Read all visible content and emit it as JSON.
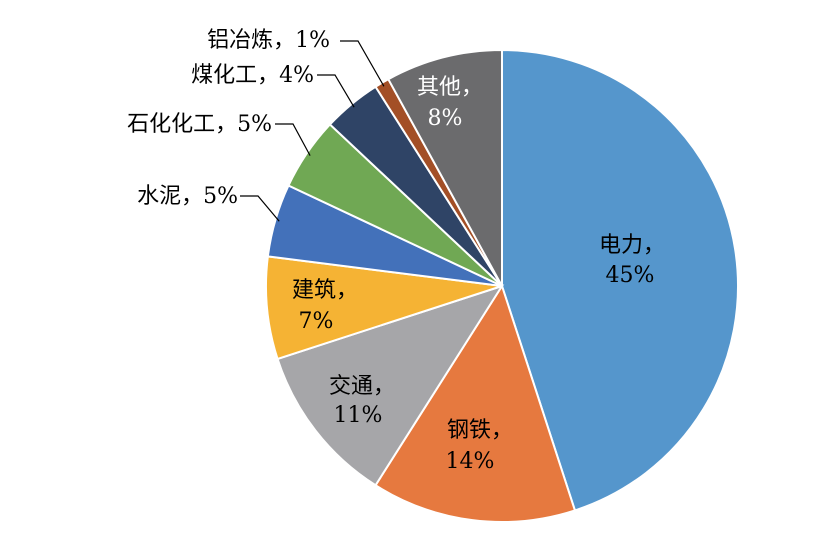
{
  "chart_data": {
    "type": "pie",
    "title": "",
    "slices": [
      {
        "name": "电力",
        "value": 45,
        "text": "电力，",
        "pct": "45%",
        "color": "#5596cc"
      },
      {
        "name": "钢铁",
        "value": 14,
        "text": "钢铁，",
        "pct": "14%",
        "color": "#e6793f"
      },
      {
        "name": "交通",
        "value": 11,
        "text": "交通，",
        "pct": "11%",
        "color": "#a6a6a9"
      },
      {
        "name": "建筑",
        "value": 7,
        "text": "建筑，",
        "pct": "7%",
        "color": "#f5b334"
      },
      {
        "name": "水泥",
        "value": 5,
        "text": "水泥，5%",
        "color": "#4371ba"
      },
      {
        "name": "石化化工",
        "value": 5,
        "text": "石化化工，5%",
        "color": "#70a854"
      },
      {
        "name": "煤化工",
        "value": 4,
        "text": "煤化工，4%",
        "color": "#2f4466"
      },
      {
        "name": "铝冶炼",
        "value": 1,
        "text": "铝冶炼，1%",
        "color": "#a34f26"
      },
      {
        "name": "其他",
        "value": 8,
        "text": "其他，",
        "pct": "8%",
        "color": "#6b6b6d"
      }
    ]
  }
}
